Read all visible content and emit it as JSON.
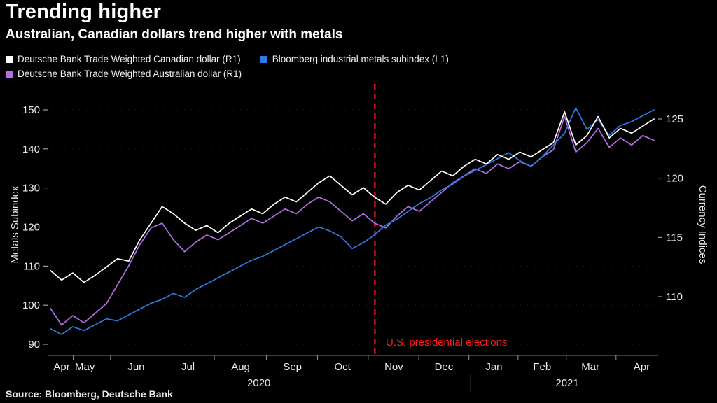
{
  "title": "Trending higher",
  "subtitle": "Australian, Canadian dollars trend higher with metals",
  "source": "Source: Bloomberg, Deutsche Bank",
  "background": "#000000",
  "legend": [
    {
      "label": "Deutsche Bank Trade Weighted Canadian dollar (R1)",
      "color": "#ffffff"
    },
    {
      "label": "Bloomberg industrial metals subindex (L1)",
      "color": "#2f7ae0"
    },
    {
      "label": "Deutsche Bank Trade Weighted Australian dollar (R1)",
      "color": "#b46ee6"
    }
  ],
  "chart_data": {
    "type": "line",
    "title": "Trending higher",
    "grid": "faint dotted horizontal",
    "legend_position": "top-left",
    "x_axis": {
      "months": [
        "Apr",
        "May",
        "Jun",
        "Jul",
        "Aug",
        "Sep",
        "Oct",
        "Nov",
        "Dec",
        "Jan",
        "Feb",
        "Mar",
        "Apr"
      ],
      "month_positions": [
        0.023,
        0.061,
        0.145,
        0.23,
        0.316,
        0.401,
        0.483,
        0.567,
        0.649,
        0.731,
        0.81,
        0.889,
        0.973
      ],
      "years": [
        {
          "label": "2020",
          "pos": 0.346
        },
        {
          "label": "2021",
          "pos": 0.851
        }
      ],
      "year_divider_pos": 0.693
    },
    "y_left": {
      "label": "Metals Subindex",
      "ticks": [
        90,
        100,
        110,
        120,
        130,
        140,
        150
      ],
      "range": [
        87,
        155
      ]
    },
    "y_right": {
      "label": "Currency Indices",
      "ticks": [
        110,
        115,
        120,
        125
      ],
      "range": [
        105,
        127.5
      ]
    },
    "event_line": {
      "pos": 0.536,
      "label": "U.S. presidential elections",
      "color": "#ff1a1a"
    },
    "series": [
      {
        "id": "canadian-dollar",
        "name": "Deutsche Bank Trade Weighted Canadian dollar",
        "axis": "right",
        "color": "#ffffff",
        "values": [
          112.2,
          111.4,
          112.0,
          111.2,
          111.8,
          112.5,
          113.2,
          113.0,
          114.8,
          116.2,
          117.6,
          117.0,
          116.2,
          115.6,
          116.0,
          115.4,
          116.2,
          116.8,
          117.4,
          117.0,
          117.8,
          118.4,
          118.0,
          118.8,
          119.6,
          120.2,
          119.4,
          118.6,
          119.2,
          118.4,
          117.8,
          118.8,
          119.4,
          119.0,
          119.8,
          120.6,
          120.2,
          121.0,
          121.6,
          121.2,
          122.0,
          121.6,
          122.2,
          121.8,
          122.4,
          123.0,
          125.6,
          122.8,
          123.6,
          125.2,
          123.4,
          124.2,
          123.8,
          124.4,
          125.0
        ]
      },
      {
        "id": "metals-subindex",
        "name": "Bloomberg industrial metals subindex",
        "axis": "left",
        "color": "#2f7ae0",
        "values": [
          94.0,
          92.5,
          94.5,
          93.5,
          95.0,
          96.5,
          96.0,
          97.5,
          99.0,
          100.5,
          101.5,
          103.0,
          102.0,
          104.0,
          105.5,
          107.0,
          108.5,
          110.0,
          111.5,
          112.5,
          114.0,
          115.5,
          117.0,
          118.5,
          120.0,
          119.0,
          117.5,
          114.5,
          116.0,
          118.0,
          120.5,
          122.0,
          124.0,
          126.0,
          127.5,
          129.5,
          131.0,
          133.0,
          134.5,
          136.0,
          137.5,
          139.0,
          137.0,
          135.5,
          138.0,
          141.0,
          144.0,
          150.5,
          145.0,
          147.5,
          143.5,
          146.0,
          147.0,
          148.5,
          150.0
        ]
      },
      {
        "id": "australian-dollar",
        "name": "Deutsche Bank Trade Weighted Australian dollar",
        "axis": "right",
        "color": "#b46ee6",
        "values": [
          109.0,
          107.6,
          108.4,
          107.8,
          108.6,
          109.4,
          111.0,
          112.6,
          114.4,
          115.8,
          116.2,
          114.8,
          113.8,
          114.6,
          115.2,
          114.8,
          115.4,
          116.0,
          116.6,
          116.2,
          116.8,
          117.4,
          117.0,
          117.8,
          118.4,
          118.0,
          117.2,
          116.4,
          117.0,
          116.2,
          115.8,
          116.8,
          117.6,
          117.2,
          118.0,
          118.8,
          119.6,
          120.2,
          120.8,
          120.4,
          121.2,
          120.8,
          121.4,
          121.0,
          121.8,
          122.4,
          125.2,
          122.2,
          123.0,
          124.2,
          122.6,
          123.4,
          122.8,
          123.6,
          123.2
        ]
      }
    ]
  }
}
